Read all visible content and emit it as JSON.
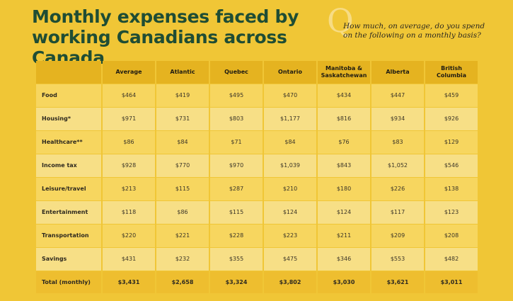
{
  "title": "Monthly expenses faced by working Canadians across Canada",
  "question_mark_glyph": "Q",
  "question": "How much, on average, do you spend on the following on a monthly basis?",
  "colors": {
    "background": "#f0c636",
    "title": "#1f4d34",
    "header_band": "#e5b320",
    "row_light": "#f7df86",
    "row_mid": "#f7d65f",
    "total_row": "#eebe2f"
  },
  "table": {
    "columns": [
      "Average",
      "Atlantic",
      "Quebec",
      "Ontario",
      "Manitoba & Saskatchewan",
      "Alberta",
      "British Columbia"
    ],
    "rows": [
      {
        "label": "Food",
        "values": [
          "$464",
          "$419",
          "$495",
          "$470",
          "$434",
          "$447",
          "$459"
        ]
      },
      {
        "label": "Housing*",
        "values": [
          "$971",
          "$731",
          "$803",
          "$1,177",
          "$816",
          "$934",
          "$926"
        ]
      },
      {
        "label": "Healthcare**",
        "values": [
          "$86",
          "$84",
          "$71",
          "$84",
          "$76",
          "$83",
          "$129"
        ]
      },
      {
        "label": "Income tax",
        "values": [
          "$928",
          "$770",
          "$970",
          "$1,039",
          "$843",
          "$1,052",
          "$546"
        ]
      },
      {
        "label": "Leisure/travel",
        "values": [
          "$213",
          "$115",
          "$287",
          "$210",
          "$180",
          "$226",
          "$138"
        ]
      },
      {
        "label": "Entertainment",
        "values": [
          "$118",
          "$86",
          "$115",
          "$124",
          "$124",
          "$117",
          "$123"
        ]
      },
      {
        "label": "Transportation",
        "values": [
          "$220",
          "$221",
          "$228",
          "$223",
          "$211",
          "$209",
          "$208"
        ]
      },
      {
        "label": "Savings",
        "values": [
          "$431",
          "$232",
          "$355",
          "$475",
          "$346",
          "$553",
          "$482"
        ]
      }
    ],
    "total": {
      "label": "Total (monthly)",
      "values": [
        "$3,431",
        "$2,658",
        "$3,324",
        "$3,802",
        "$3,030",
        "$3,621",
        "$3,011"
      ]
    }
  }
}
